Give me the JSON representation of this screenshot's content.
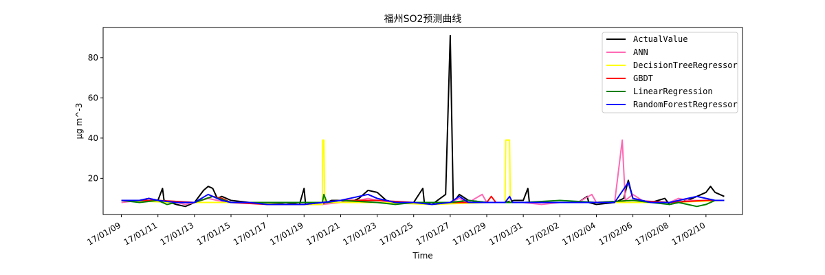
{
  "chart_data": {
    "type": "line",
    "title": "福州SO2预测曲线",
    "xlabel": "Time",
    "ylabel": "μg m^-3",
    "x_start": "2017-01-09",
    "x_end": "2017-02-11",
    "xlim": [
      "2017-01-08",
      "2017-02-12"
    ],
    "ylim": [
      2,
      95
    ],
    "yticks": [
      20,
      40,
      60,
      80
    ],
    "xtick_dates": [
      "2017-01-09",
      "2017-01-11",
      "2017-01-13",
      "2017-01-15",
      "2017-01-17",
      "2017-01-19",
      "2017-01-21",
      "2017-01-23",
      "2017-01-25",
      "2017-01-27",
      "2017-01-29",
      "2017-01-31",
      "2017-02-02",
      "2017-02-04",
      "2017-02-06",
      "2017-02-08",
      "2017-02-10"
    ],
    "xtick_labels": [
      "17/01/09",
      "17/01/11",
      "17/01/13",
      "17/01/15",
      "17/01/17",
      "17/01/19",
      "17/01/21",
      "17/01/23",
      "17/01/25",
      "17/01/27",
      "17/01/29",
      "17/01/31",
      "17/02/02",
      "17/02/04",
      "17/02/06",
      "17/02/08",
      "17/02/10"
    ],
    "grid": false,
    "legend_position": "top-right",
    "series": [
      {
        "name": "ActualValue",
        "color": "#000000",
        "points": [
          [
            "2017-01-09",
            9
          ],
          [
            "2017-01-10",
            9
          ],
          [
            "2017-01-10T12:00",
            10
          ],
          [
            "2017-01-11",
            9
          ],
          [
            "2017-01-11T06:00",
            15
          ],
          [
            "2017-01-11T08:00",
            9
          ],
          [
            "2017-01-12",
            7
          ],
          [
            "2017-01-12T12:00",
            6
          ],
          [
            "2017-01-13",
            8
          ],
          [
            "2017-01-13T12:00",
            14
          ],
          [
            "2017-01-13T18:00",
            16
          ],
          [
            "2017-01-14",
            15
          ],
          [
            "2017-01-14T06:00",
            10
          ],
          [
            "2017-01-14T12:00",
            11
          ],
          [
            "2017-01-15",
            9
          ],
          [
            "2017-01-16",
            8
          ],
          [
            "2017-01-17",
            7
          ],
          [
            "2017-01-18",
            8
          ],
          [
            "2017-01-18T18:00",
            7
          ],
          [
            "2017-01-19",
            15
          ],
          [
            "2017-01-19T02:00",
            7
          ],
          [
            "2017-01-20",
            7
          ],
          [
            "2017-01-20T12:00",
            9
          ],
          [
            "2017-01-21",
            9
          ],
          [
            "2017-01-21T12:00",
            8
          ],
          [
            "2017-01-22",
            10
          ],
          [
            "2017-01-22T12:00",
            14
          ],
          [
            "2017-01-23",
            13
          ],
          [
            "2017-01-23T12:00",
            9
          ],
          [
            "2017-01-24",
            8
          ],
          [
            "2017-01-25",
            8
          ],
          [
            "2017-01-25T12:00",
            15
          ],
          [
            "2017-01-25T14:00",
            8
          ],
          [
            "2017-01-26",
            7
          ],
          [
            "2017-01-26T18:00",
            12
          ],
          [
            "2017-01-27",
            91
          ],
          [
            "2017-01-27T04:00",
            8
          ],
          [
            "2017-01-27T12:00",
            12
          ],
          [
            "2017-01-28",
            9
          ],
          [
            "2017-01-29",
            8
          ],
          [
            "2017-01-30",
            8
          ],
          [
            "2017-01-30T12:00",
            9
          ],
          [
            "2017-01-31",
            9
          ],
          [
            "2017-01-31T06:00",
            15
          ],
          [
            "2017-01-31T08:00",
            8
          ],
          [
            "2017-02-01",
            8
          ],
          [
            "2017-02-02",
            8
          ],
          [
            "2017-02-03",
            8
          ],
          [
            "2017-02-03T12:00",
            11
          ],
          [
            "2017-02-03T14:00",
            8
          ],
          [
            "2017-02-04",
            7
          ],
          [
            "2017-02-05",
            8
          ],
          [
            "2017-02-05T12:00",
            10
          ],
          [
            "2017-02-05T18:00",
            19
          ],
          [
            "2017-02-06",
            10
          ],
          [
            "2017-02-07",
            8
          ],
          [
            "2017-02-07T18:00",
            10
          ],
          [
            "2017-02-08",
            7
          ],
          [
            "2017-02-09",
            9
          ],
          [
            "2017-02-09T12:00",
            11
          ],
          [
            "2017-02-10",
            13
          ],
          [
            "2017-02-10T06:00",
            16
          ],
          [
            "2017-02-10T12:00",
            13
          ],
          [
            "2017-02-11",
            11
          ]
        ]
      },
      {
        "name": "ANN",
        "color": "#ff69b4",
        "points": [
          [
            "2017-01-09",
            8
          ],
          [
            "2017-01-10",
            9
          ],
          [
            "2017-01-10T12:00",
            10
          ],
          [
            "2017-01-11",
            9
          ],
          [
            "2017-01-12",
            8
          ],
          [
            "2017-01-12T12:00",
            7
          ],
          [
            "2017-01-13",
            8
          ],
          [
            "2017-01-13T18:00",
            10
          ],
          [
            "2017-01-14T06:00",
            9
          ],
          [
            "2017-01-15",
            8
          ],
          [
            "2017-01-16",
            8
          ],
          [
            "2017-01-17",
            7
          ],
          [
            "2017-01-18",
            7
          ],
          [
            "2017-01-19",
            7
          ],
          [
            "2017-01-20",
            7
          ],
          [
            "2017-01-21",
            8
          ],
          [
            "2017-01-22",
            9
          ],
          [
            "2017-01-22T12:00",
            10
          ],
          [
            "2017-01-23",
            9
          ],
          [
            "2017-01-24",
            8
          ],
          [
            "2017-01-25",
            8
          ],
          [
            "2017-01-26",
            7
          ],
          [
            "2017-01-27",
            8
          ],
          [
            "2017-01-27T12:00",
            10
          ],
          [
            "2017-01-28",
            8
          ],
          [
            "2017-01-28T18:00",
            12
          ],
          [
            "2017-01-29",
            8
          ],
          [
            "2017-01-30",
            8
          ],
          [
            "2017-01-31",
            8
          ],
          [
            "2017-02-01",
            7
          ],
          [
            "2017-02-02",
            8
          ],
          [
            "2017-02-03",
            8
          ],
          [
            "2017-02-03T18:00",
            12
          ],
          [
            "2017-02-04",
            8
          ],
          [
            "2017-02-05",
            8
          ],
          [
            "2017-02-05T10:00",
            39
          ],
          [
            "2017-02-05T14:00",
            9
          ],
          [
            "2017-02-06",
            12
          ],
          [
            "2017-02-06T12:00",
            9
          ],
          [
            "2017-02-07",
            8
          ],
          [
            "2017-02-08",
            8
          ],
          [
            "2017-02-08T12:00",
            10
          ],
          [
            "2017-02-09",
            9
          ],
          [
            "2017-02-10",
            9
          ],
          [
            "2017-02-11",
            9
          ]
        ]
      },
      {
        "name": "DecisionTreeRegressor",
        "color": "#ffff00",
        "points": [
          [
            "2017-01-09",
            9
          ],
          [
            "2017-01-12",
            8
          ],
          [
            "2017-01-15",
            8
          ],
          [
            "2017-01-18",
            7
          ],
          [
            "2017-01-20",
            7
          ],
          [
            "2017-01-20T00:30",
            39
          ],
          [
            "2017-01-20T02:00",
            39
          ],
          [
            "2017-01-20T03:00",
            8
          ],
          [
            "2017-01-23",
            8
          ],
          [
            "2017-01-26",
            7
          ],
          [
            "2017-01-29",
            8
          ],
          [
            "2017-01-30",
            8
          ],
          [
            "2017-01-30T01:00",
            39
          ],
          [
            "2017-01-30T06:00",
            39
          ],
          [
            "2017-01-30T07:00",
            8
          ],
          [
            "2017-02-02",
            8
          ],
          [
            "2017-02-05",
            8
          ],
          [
            "2017-02-08",
            8
          ],
          [
            "2017-02-11",
            9
          ]
        ]
      },
      {
        "name": "GBDT",
        "color": "#ff0000",
        "points": [
          [
            "2017-01-09",
            9
          ],
          [
            "2017-01-11",
            9
          ],
          [
            "2017-01-13",
            8
          ],
          [
            "2017-01-14",
            11
          ],
          [
            "2017-01-14T12:00",
            10
          ],
          [
            "2017-01-15",
            8
          ],
          [
            "2017-01-17",
            7
          ],
          [
            "2017-01-19",
            7
          ],
          [
            "2017-01-21",
            9
          ],
          [
            "2017-01-23",
            9
          ],
          [
            "2017-01-25",
            8
          ],
          [
            "2017-01-27",
            8
          ],
          [
            "2017-01-29",
            8
          ],
          [
            "2017-01-29T06:00",
            11
          ],
          [
            "2017-01-29T12:00",
            8
          ],
          [
            "2017-01-31",
            8
          ],
          [
            "2017-02-02",
            8
          ],
          [
            "2017-02-04",
            8
          ],
          [
            "2017-02-06",
            9
          ],
          [
            "2017-02-08",
            8
          ],
          [
            "2017-02-10",
            9
          ],
          [
            "2017-02-11",
            9
          ]
        ]
      },
      {
        "name": "LinearRegression",
        "color": "#008000",
        "points": [
          [
            "2017-01-09",
            9
          ],
          [
            "2017-01-10",
            8
          ],
          [
            "2017-01-11",
            9
          ],
          [
            "2017-01-11T12:00",
            7
          ],
          [
            "2017-01-12",
            8
          ],
          [
            "2017-01-13",
            8
          ],
          [
            "2017-01-14",
            11
          ],
          [
            "2017-01-15",
            8
          ],
          [
            "2017-01-17",
            8
          ],
          [
            "2017-01-19",
            8
          ],
          [
            "2017-01-20",
            8
          ],
          [
            "2017-01-20T02:00",
            12
          ],
          [
            "2017-01-20T06:00",
            8
          ],
          [
            "2017-01-21",
            9
          ],
          [
            "2017-01-23",
            8
          ],
          [
            "2017-01-24",
            7
          ],
          [
            "2017-01-25",
            8
          ],
          [
            "2017-01-27",
            8
          ],
          [
            "2017-01-28",
            9
          ],
          [
            "2017-01-29",
            8
          ],
          [
            "2017-01-31",
            8
          ],
          [
            "2017-02-02",
            9
          ],
          [
            "2017-02-04",
            8
          ],
          [
            "2017-02-06",
            9
          ],
          [
            "2017-02-07",
            8
          ],
          [
            "2017-02-08",
            7
          ],
          [
            "2017-02-08T12:00",
            8
          ],
          [
            "2017-02-09",
            7
          ],
          [
            "2017-02-09T12:00",
            6
          ],
          [
            "2017-02-10",
            7
          ],
          [
            "2017-02-10T12:00",
            9
          ],
          [
            "2017-02-11",
            9
          ]
        ]
      },
      {
        "name": "RandomForestRegressor",
        "color": "#0000ff",
        "points": [
          [
            "2017-01-09",
            9
          ],
          [
            "2017-01-10",
            9
          ],
          [
            "2017-01-10T12:00",
            10
          ],
          [
            "2017-01-11",
            9
          ],
          [
            "2017-01-12",
            8
          ],
          [
            "2017-01-13",
            8
          ],
          [
            "2017-01-13T18:00",
            12
          ],
          [
            "2017-01-14",
            11
          ],
          [
            "2017-01-14T12:00",
            9
          ],
          [
            "2017-01-15",
            8
          ],
          [
            "2017-01-16",
            8
          ],
          [
            "2017-01-17",
            7
          ],
          [
            "2017-01-18",
            7
          ],
          [
            "2017-01-19",
            7
          ],
          [
            "2017-01-20",
            8
          ],
          [
            "2017-01-21",
            9
          ],
          [
            "2017-01-22",
            11
          ],
          [
            "2017-01-22T12:00",
            12
          ],
          [
            "2017-01-23",
            10
          ],
          [
            "2017-01-24",
            8
          ],
          [
            "2017-01-25",
            8
          ],
          [
            "2017-01-26",
            7
          ],
          [
            "2017-01-27",
            8
          ],
          [
            "2017-01-27T12:00",
            11
          ],
          [
            "2017-01-28",
            8
          ],
          [
            "2017-01-29",
            8
          ],
          [
            "2017-01-30",
            8
          ],
          [
            "2017-01-30T06:00",
            11
          ],
          [
            "2017-01-30T10:00",
            8
          ],
          [
            "2017-01-31",
            8
          ],
          [
            "2017-02-01",
            8
          ],
          [
            "2017-02-02",
            8
          ],
          [
            "2017-02-03",
            8
          ],
          [
            "2017-02-04",
            8
          ],
          [
            "2017-02-05",
            8
          ],
          [
            "2017-02-05T18:00",
            18
          ],
          [
            "2017-02-06",
            10
          ],
          [
            "2017-02-07",
            8
          ],
          [
            "2017-02-08",
            8
          ],
          [
            "2017-02-09",
            10
          ],
          [
            "2017-02-09T12:00",
            11
          ],
          [
            "2017-02-10",
            10
          ],
          [
            "2017-02-10T12:00",
            9
          ],
          [
            "2017-02-11",
            9
          ]
        ]
      }
    ]
  }
}
